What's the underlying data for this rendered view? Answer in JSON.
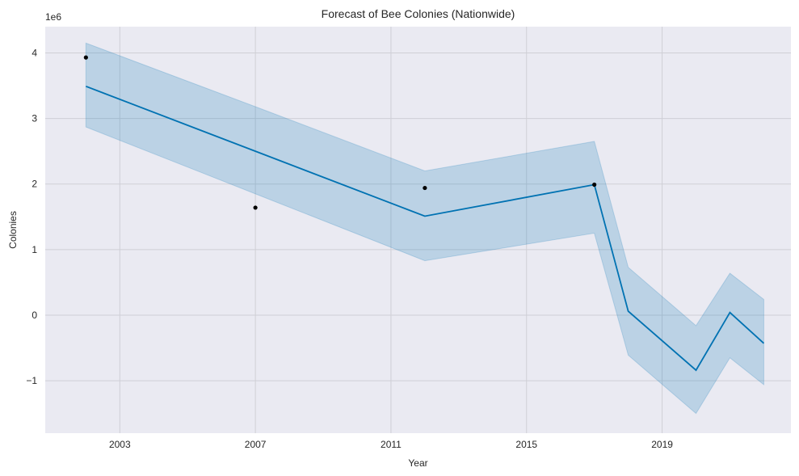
{
  "chart_data": {
    "type": "line",
    "title": "Forecast of Bee Colonies (Nationwide)",
    "xlabel": "Year",
    "ylabel": "Colonies",
    "y_scale_label": "1e6",
    "x_ticks": [
      "2003",
      "2007",
      "2011",
      "2015",
      "2019"
    ],
    "y_ticks": [
      "−1",
      "0",
      "1",
      "2",
      "3",
      "4"
    ],
    "y_tick_values": [
      -1,
      0,
      1,
      2,
      3,
      4
    ],
    "x_tick_values": [
      2003,
      2007,
      2011,
      2015,
      2019
    ],
    "xlim": [
      2000.8,
      2022.8
    ],
    "ylim": [
      -1.8,
      4.4
    ],
    "grid": true,
    "series": [
      {
        "kind": "forecast",
        "x": [
          2002,
          2007,
          2012,
          2017,
          2018,
          2020,
          2021,
          2022
        ],
        "y": [
          3.49,
          2.5,
          1.51,
          1.99,
          0.06,
          -0.84,
          0.04,
          -0.43
        ]
      },
      {
        "kind": "uncertainty_interval",
        "x": [
          2002,
          2007,
          2012,
          2017,
          2018,
          2020,
          2021,
          2022
        ],
        "lower": [
          2.87,
          1.85,
          0.83,
          1.25,
          -0.61,
          -1.5,
          -0.65,
          -1.06
        ],
        "upper": [
          4.15,
          3.18,
          2.2,
          2.65,
          0.73,
          -0.16,
          0.64,
          0.24
        ]
      },
      {
        "kind": "observed",
        "x": [
          2002,
          2007,
          2012,
          2017
        ],
        "y": [
          3.93,
          1.64,
          1.94,
          1.99
        ]
      }
    ],
    "colors": {
      "background": "#eaeaf2",
      "grid": "#cfcfd6",
      "line": "#0072b2",
      "band": "#0072b2",
      "points": "#000000"
    }
  }
}
